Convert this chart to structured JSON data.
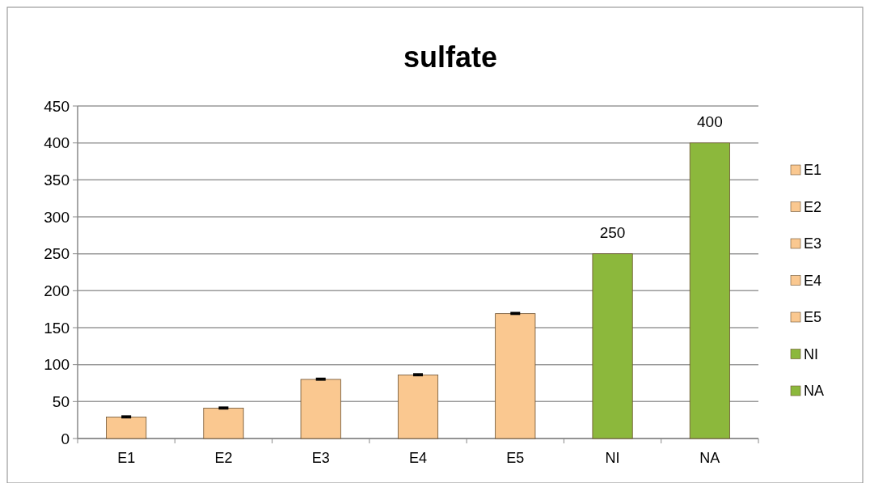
{
  "chart_data": {
    "type": "bar",
    "title": "sulfate",
    "categories": [
      "E1",
      "E2",
      "E3",
      "E4",
      "E5",
      "NI",
      "NA"
    ],
    "series": [
      {
        "name": "E1",
        "color": "#fac890",
        "values": [
          29,
          null,
          null,
          null,
          null,
          null,
          null
        ],
        "errors": [
          1,
          null,
          null,
          null,
          null,
          null,
          null
        ]
      },
      {
        "name": "E2",
        "color": "#fac890",
        "values": [
          null,
          41,
          null,
          null,
          null,
          null,
          null
        ],
        "errors": [
          null,
          1,
          null,
          null,
          null,
          null,
          null
        ]
      },
      {
        "name": "E3",
        "color": "#fac890",
        "values": [
          null,
          null,
          80,
          null,
          null,
          null,
          null
        ],
        "errors": [
          null,
          null,
          1,
          null,
          null,
          null,
          null
        ]
      },
      {
        "name": "E4",
        "color": "#fac890",
        "values": [
          null,
          null,
          null,
          86,
          null,
          null,
          null
        ],
        "errors": [
          null,
          null,
          null,
          1,
          null,
          null,
          null
        ]
      },
      {
        "name": "E5",
        "color": "#fac890",
        "values": [
          null,
          null,
          null,
          null,
          169,
          null,
          null
        ],
        "errors": [
          null,
          null,
          null,
          null,
          1,
          null,
          null
        ]
      },
      {
        "name": "NI",
        "color": "#8cb83c",
        "values": [
          null,
          null,
          null,
          null,
          null,
          250,
          null
        ],
        "value_labels": [
          null,
          null,
          null,
          null,
          null,
          "250",
          null
        ]
      },
      {
        "name": "NA",
        "color": "#8cb83c",
        "values": [
          null,
          null,
          null,
          null,
          null,
          null,
          400
        ],
        "value_labels": [
          null,
          null,
          null,
          null,
          null,
          null,
          "400"
        ]
      }
    ],
    "ylim": [
      0,
      450
    ],
    "yticks": [
      0,
      50,
      100,
      150,
      200,
      250,
      300,
      350,
      400,
      450
    ],
    "grid": "y",
    "legend": "right"
  }
}
